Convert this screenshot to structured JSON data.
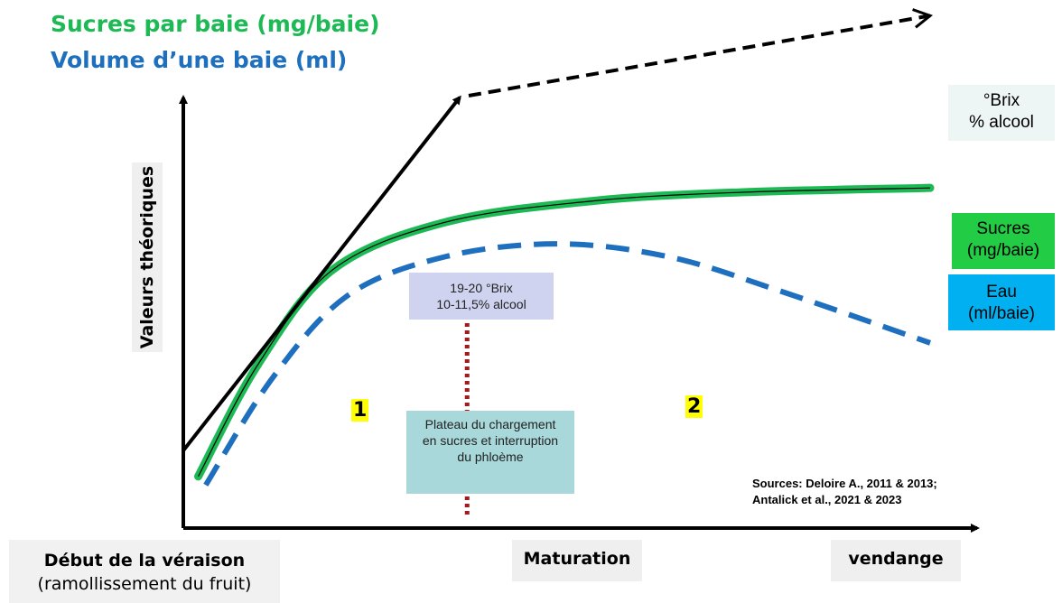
{
  "titles": {
    "sugar": "Sucres par baie (mg/baie)",
    "volume": "Volume d’une baie (ml)"
  },
  "colors": {
    "sugar": "#1db954",
    "volume": "#1f6fbf",
    "brix_line": "#000000",
    "phloem_marker": "#a01c1c",
    "box_brix": "#eef5f5",
    "box_sugar": "#22cc44",
    "box_water": "#00b0f0",
    "note_brix": "#cfd3f0",
    "note_plateau": "#a8d8da"
  },
  "axes": {
    "ylabel": "Valeurs théoriques",
    "x_start": "Début de la véraison",
    "x_start_sub": "(ramollissement du fruit)",
    "x_mid": "Maturation",
    "x_end": "vendange"
  },
  "labels": {
    "brix_line1": "°Brix",
    "brix_line2": "% alcool",
    "sugar_line1": "Sucres",
    "sugar_line2": "(mg/baie)",
    "water_line1": "Eau",
    "water_line2": "(ml/baie)"
  },
  "annotations": {
    "brix_threshold_1": "19-20 °Brix",
    "brix_threshold_2": "10-11,5% alcool",
    "plateau": "Plateau du chargement en sucres et interruption du phloème",
    "zone1": "1",
    "zone2": "2",
    "sources_1": "Sources: Deloire A., 2011 & 2013;",
    "sources_2": "Antalick et al., 2021 & 2023"
  },
  "chart_data": {
    "type": "line",
    "xlabel": "",
    "ylabel": "Valeurs théoriques",
    "x_categories": [
      "Début de la véraison",
      "Maturation",
      "vendange"
    ],
    "xlim": [
      0,
      100
    ],
    "ylim": [
      0,
      100
    ],
    "grid": false,
    "series": [
      {
        "name": "Sucres (mg/baie)",
        "style": "solid",
        "points": [
          [
            2,
            12
          ],
          [
            10,
            38
          ],
          [
            20,
            60
          ],
          [
            35,
            71
          ],
          [
            55,
            76
          ],
          [
            75,
            78
          ],
          [
            100,
            79
          ]
        ]
      },
      {
        "name": "Eau (ml/baie)",
        "style": "dashed",
        "points": [
          [
            3,
            10
          ],
          [
            12,
            35
          ],
          [
            22,
            54
          ],
          [
            35,
            63
          ],
          [
            50,
            66
          ],
          [
            65,
            63
          ],
          [
            80,
            55
          ],
          [
            100,
            43
          ]
        ]
      },
      {
        "name": "°Brix % alcool",
        "style": "solid-then-dashed",
        "points": [
          [
            0,
            18
          ],
          [
            37,
            100
          ],
          [
            100,
            119
          ]
        ]
      }
    ],
    "markers": [
      {
        "x": 38,
        "label": "19-20 °Brix 10-11,5% alcool / Plateau du chargement en sucres et interruption du phloème"
      }
    ],
    "zones": [
      {
        "label": "1",
        "x_range": [
          0,
          38
        ]
      },
      {
        "label": "2",
        "x_range": [
          38,
          100
        ]
      }
    ]
  }
}
